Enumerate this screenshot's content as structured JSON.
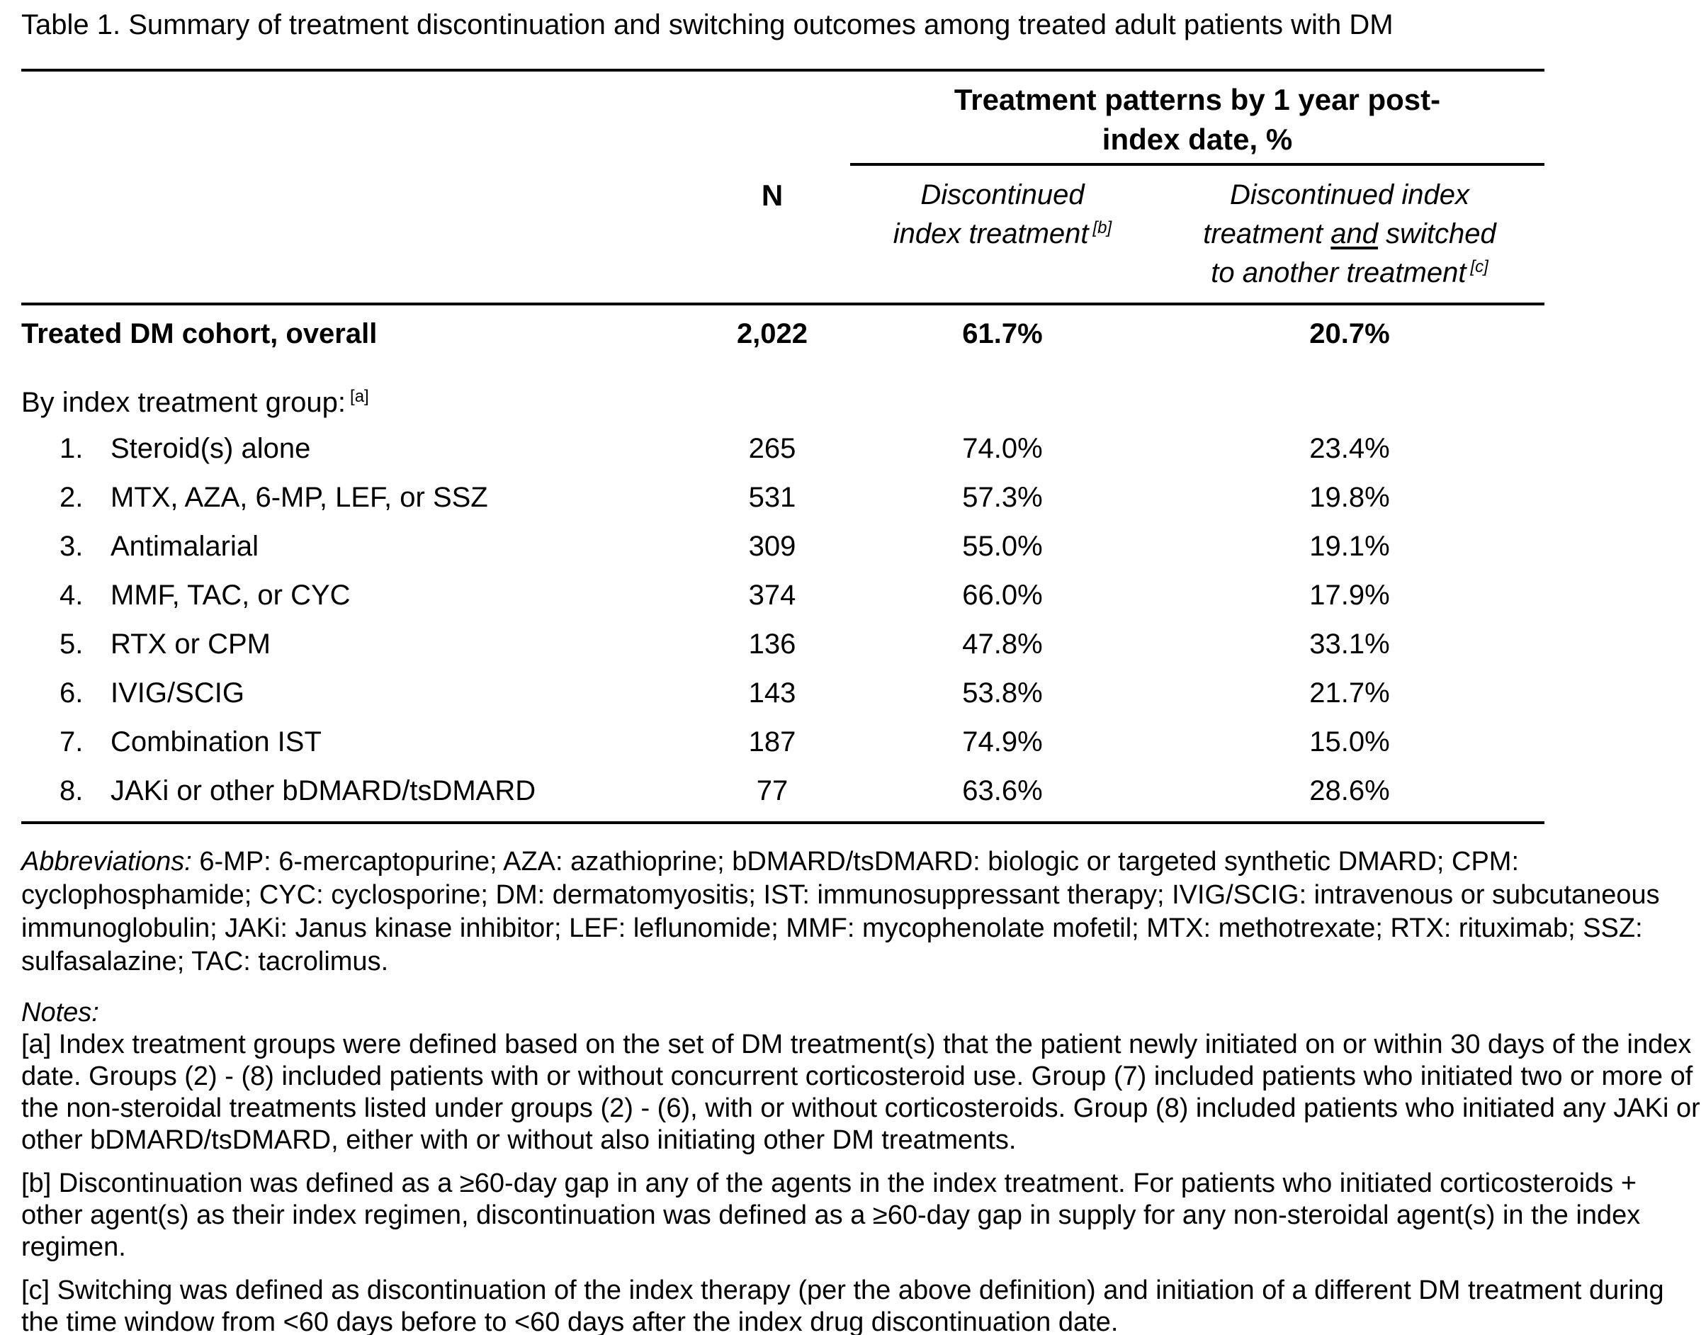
{
  "title": "Table 1. Summary of treatment discontinuation and switching outcomes among treated adult patients with DM",
  "table": {
    "headers": {
      "span": "Treatment patterns by 1 year post-index date, %",
      "n": "N",
      "b_line1": "Discontinued",
      "b_line2": "index treatment",
      "b_sup": "[b]",
      "c_line1": "Discontinued index",
      "c_line2_pre": "treatment ",
      "c_line2_and": "and",
      "c_line2_post": " switched",
      "c_line3": "to another treatment",
      "c_sup": "[c]"
    },
    "overall": {
      "label": "Treated DM cohort, overall",
      "n": "2,022",
      "discontinued": "61.7%",
      "switched": "20.7%"
    },
    "group_header": {
      "text": "By index treatment group:",
      "sup": "[a]"
    },
    "rows": [
      {
        "num": "1.",
        "label": "Steroid(s) alone",
        "n": "265",
        "discontinued": "74.0%",
        "switched": "23.4%"
      },
      {
        "num": "2.",
        "label": "MTX, AZA, 6-MP, LEF, or SSZ",
        "n": "531",
        "discontinued": "57.3%",
        "switched": "19.8%"
      },
      {
        "num": "3.",
        "label": "Antimalarial",
        "n": "309",
        "discontinued": "55.0%",
        "switched": "19.1%"
      },
      {
        "num": "4.",
        "label": "MMF, TAC, or CYC",
        "n": "374",
        "discontinued": "66.0%",
        "switched": "17.9%"
      },
      {
        "num": "5.",
        "label": "RTX or CPM",
        "n": "136",
        "discontinued": "47.8%",
        "switched": "33.1%"
      },
      {
        "num": "6.",
        "label": "IVIG/SCIG",
        "n": "143",
        "discontinued": "53.8%",
        "switched": "21.7%"
      },
      {
        "num": "7.",
        "label": "Combination IST",
        "n": "187",
        "discontinued": "74.9%",
        "switched": "15.0%"
      },
      {
        "num": "8.",
        "label": "JAKi or other bDMARD/tsDMARD",
        "n": "77",
        "discontinued": "63.6%",
        "switched": "28.6%"
      }
    ]
  },
  "abbreviations": {
    "label": "Abbreviations:",
    "text": " 6-MP: 6-mercaptopurine; AZA: azathioprine; bDMARD/tsDMARD: biologic or targeted synthetic DMARD; CPM: cyclophosphamide; CYC: cyclosporine; DM: dermatomyositis; IST: immunosuppressant therapy; IVIG/SCIG: intravenous or subcutaneous immunoglobulin; JAKi: Janus kinase inhibitor; LEF: leflunomide; MMF: mycophenolate mofetil; MTX: methotrexate; RTX: rituximab; SSZ: sulfasalazine; TAC: tacrolimus."
  },
  "notes": {
    "label": "Notes:",
    "a": "[a] Index treatment groups were defined based on the set of DM treatment(s) that the patient newly initiated on or within 30 days of the index date. Groups (2) - (8) included patients with or without concurrent corticosteroid use. Group (7) included patients who initiated two or more of the non-steroidal treatments listed under groups (2) - (6), with or without corticosteroids. Group (8) included patients who initiated any JAKi or other bDMARD/tsDMARD, either with or without also initiating other DM treatments.",
    "b": "[b] Discontinuation was defined as a ≥60-day gap in any of the agents in the index treatment. For patients who initiated corticosteroids + other agent(s) as their index regimen, discontinuation was defined as a ≥60-day gap in supply for any non-steroidal agent(s) in the index regimen.",
    "c": "[c] Switching was defined as discontinuation of the index therapy (per the above definition) and initiation of a different DM treatment during the time window from <60 days before to <60 days after the index drug discontinuation date."
  }
}
